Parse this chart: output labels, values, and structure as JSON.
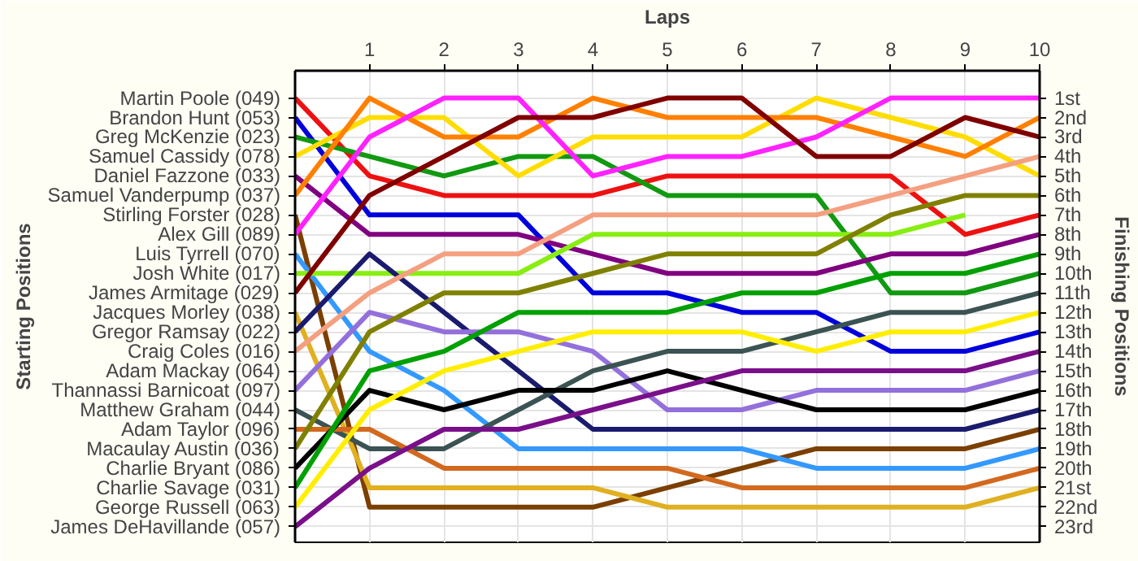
{
  "chart_data": {
    "type": "line",
    "xlabel": "Laps",
    "ylabel": "Finishing Positions",
    "annotations": [
      "Starting Positions"
    ],
    "x": [
      0,
      1,
      2,
      3,
      4,
      5,
      6,
      7,
      8,
      9,
      10
    ],
    "xlim": [
      0,
      10
    ],
    "xticks": [
      1,
      2,
      3,
      4,
      5,
      6,
      7,
      8,
      9,
      10
    ],
    "ylim": [
      23.8,
      -0.4
    ],
    "y_categories": [
      "Martin Poole (049)",
      "Brandon Hunt (053)",
      "Greg McKenzie (023)",
      "Samuel Cassidy (078)",
      "Daniel Fazzone (033)",
      "Samuel Vanderpump (037)",
      "Stirling Forster (028)",
      "Alex Gill (089)",
      "Luis Tyrrell (070)",
      "Josh White (017)",
      "James Armitage (029)",
      "Jacques Morley (038)",
      "Gregor Ramsay (022)",
      "Craig Coles (016)",
      "Adam Mackay (064)",
      "Thannassi Barnicoat (097)",
      "Matthew Graham (044)",
      "Adam Taylor (096)",
      "Macaulay Austin (036)",
      "Charlie Bryant (086)",
      "Charlie Savage (031)",
      "George Russell (063)",
      "James DeHavillande (057)"
    ],
    "yticks": [
      {
        "value": 1,
        "label": "1st"
      },
      {
        "value": 2,
        "label": "2nd"
      },
      {
        "value": 3,
        "label": "3rd"
      },
      {
        "value": 4,
        "label": "4th"
      },
      {
        "value": 5,
        "label": "5th"
      },
      {
        "value": 6,
        "label": "6th"
      },
      {
        "value": 7,
        "label": "7th"
      },
      {
        "value": 8,
        "label": "8th"
      },
      {
        "value": 9,
        "label": "9th"
      },
      {
        "value": 10,
        "label": "10th"
      },
      {
        "value": 11,
        "label": "11th"
      },
      {
        "value": 12,
        "label": "12th"
      },
      {
        "value": 13,
        "label": "13th"
      },
      {
        "value": 14,
        "label": "14th"
      },
      {
        "value": 15,
        "label": "15th"
      },
      {
        "value": 16,
        "label": "16th"
      },
      {
        "value": 17,
        "label": "17th"
      },
      {
        "value": 18,
        "label": "18th"
      },
      {
        "value": 19,
        "label": "19th"
      },
      {
        "value": 20,
        "label": "20th"
      },
      {
        "value": 21,
        "label": "21st"
      },
      {
        "value": 22,
        "label": "22nd"
      },
      {
        "value": 23,
        "label": "23rd"
      }
    ],
    "grid": true,
    "marker": "none",
    "line_style": "solid",
    "series": [
      {
        "color": "#ee1111",
        "values": [
          1,
          5,
          6,
          6,
          6,
          5,
          5,
          5,
          5,
          8,
          7
        ]
      },
      {
        "color": "#0000dd",
        "values": [
          2,
          7,
          7,
          7,
          11,
          11,
          12,
          12,
          14,
          14,
          13
        ]
      },
      {
        "color": "#119911",
        "values": [
          3,
          4,
          5,
          4,
          4,
          6,
          6,
          6,
          11,
          11,
          10
        ]
      },
      {
        "color": "#ffdd00",
        "values": [
          4,
          2,
          2,
          5,
          3,
          3,
          3,
          1,
          2,
          3,
          5
        ]
      },
      {
        "color": "#800080",
        "values": [
          5,
          8,
          8,
          8,
          9,
          10,
          10,
          10,
          9,
          9,
          8
        ]
      },
      {
        "color": "#ff8000",
        "values": [
          6,
          1,
          3,
          3,
          1,
          2,
          2,
          2,
          3,
          4,
          2
        ]
      },
      {
        "color": "#7b3f00",
        "values": [
          7,
          22,
          22,
          22,
          22,
          21,
          20,
          19,
          19,
          19,
          18
        ]
      },
      {
        "color": "#ff22ff",
        "values": [
          8,
          3,
          1,
          1,
          5,
          4,
          4,
          3,
          1,
          1,
          1
        ]
      },
      {
        "color": "#3399ff",
        "values": [
          9,
          14,
          16,
          19,
          19,
          19,
          19,
          20,
          20,
          20,
          19
        ]
      },
      {
        "color": "#88ee11",
        "values": [
          10,
          10,
          10,
          10,
          8,
          8,
          8,
          8,
          8,
          7,
          null
        ]
      },
      {
        "color": "#800000",
        "values": [
          11,
          6,
          4,
          2,
          2,
          1,
          1,
          4,
          4,
          2,
          3
        ]
      },
      {
        "color": "#e0b020",
        "values": [
          12,
          21,
          21,
          21,
          21,
          22,
          22,
          22,
          22,
          22,
          21
        ]
      },
      {
        "color": "#1a1a6e",
        "values": [
          13,
          9,
          12,
          15,
          18,
          18,
          18,
          18,
          18,
          18,
          17
        ]
      },
      {
        "color": "#f4a080",
        "values": [
          14,
          11,
          9,
          9,
          7,
          7,
          7,
          7,
          6,
          5,
          4
        ]
      },
      {
        "color": "#9370db",
        "values": [
          16,
          12,
          13,
          13,
          14,
          17,
          17,
          16,
          16,
          16,
          15
        ]
      },
      {
        "color": "#3b5352",
        "values": [
          17,
          19,
          19,
          17,
          15,
          14,
          14,
          13,
          12,
          12,
          11
        ]
      },
      {
        "color": "#d2691e",
        "values": [
          18,
          18,
          20,
          20,
          20,
          20,
          21,
          21,
          21,
          21,
          20
        ]
      },
      {
        "color": "#808000",
        "values": [
          19,
          13,
          11,
          11,
          10,
          9,
          9,
          9,
          7,
          6,
          6
        ]
      },
      {
        "color": "#000000",
        "values": [
          20,
          16,
          17,
          16,
          16,
          15,
          16,
          17,
          17,
          17,
          16
        ]
      },
      {
        "color": "#00a000",
        "values": [
          21,
          15,
          14,
          12,
          12,
          12,
          11,
          11,
          10,
          10,
          9
        ]
      },
      {
        "color": "#ffee00",
        "values": [
          22,
          17,
          15,
          14,
          13,
          13,
          13,
          14,
          13,
          13,
          12
        ]
      },
      {
        "color": "#7a0f8a",
        "values": [
          23,
          20,
          18,
          18,
          17,
          16,
          15,
          15,
          15,
          15,
          14
        ]
      }
    ]
  }
}
